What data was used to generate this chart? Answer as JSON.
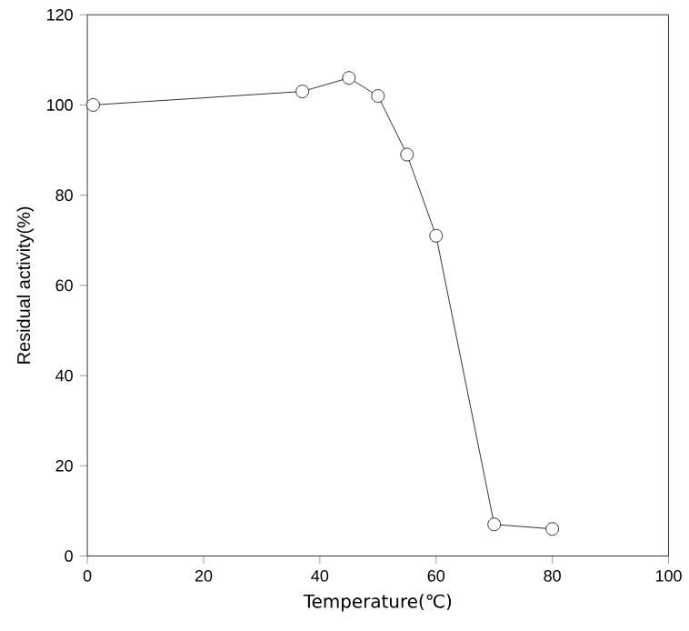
{
  "chart_data": {
    "type": "line",
    "xlabel": "Temperature(℃)",
    "ylabel": "Residual activity(%)",
    "x": [
      1,
      37,
      45,
      50,
      55,
      60,
      70,
      80
    ],
    "values": [
      100,
      103,
      106,
      102,
      89,
      71,
      7,
      6
    ],
    "color": "#000000",
    "marker": "circle",
    "line_style": "solid",
    "xlim": [
      0,
      100
    ],
    "ylim": [
      0,
      120
    ],
    "xticks": [
      0,
      20,
      40,
      60,
      80,
      100
    ],
    "yticks": [
      0,
      20,
      40,
      60,
      80,
      100,
      120
    ],
    "grid": false
  }
}
